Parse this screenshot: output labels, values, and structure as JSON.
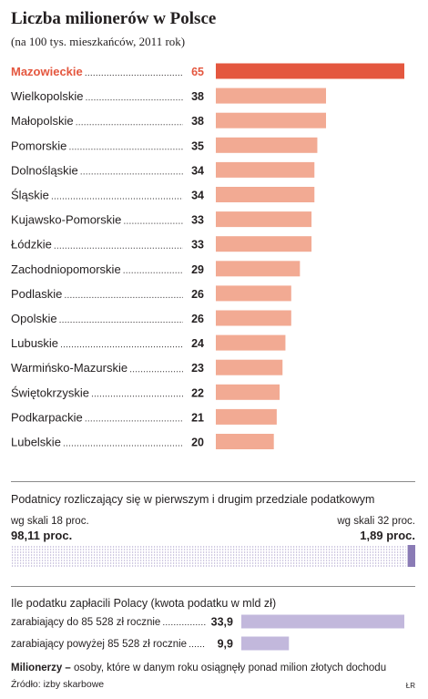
{
  "header": {
    "title": "Liczba milionerów w Polsce",
    "subtitle": "(na 100 tys. mieszkańców, 2011 rok)"
  },
  "colors": {
    "highlight": "#e4573f",
    "bar": "#f2aa93",
    "tax_bar": "#c2b8dc",
    "tax_bar_dark": "#8a7bb5",
    "dots": "#b3abd0"
  },
  "chart_data": [
    {
      "type": "bar",
      "orientation": "horizontal",
      "categories": [
        "Mazowieckie",
        "Wielkopolskie",
        "Małopolskie",
        "Pomorskie",
        "Dolnośląskie",
        "Śląskie",
        "Kujawsko-Pomorskie",
        "Łódzkie",
        "Zachodniopomorskie",
        "Podlaskie",
        "Opolskie",
        "Lubuskie",
        "Warmińsko-Mazurskie",
        "Świętokrzyskie",
        "Podkarpackie",
        "Lubelskie"
      ],
      "values": [
        65,
        38,
        38,
        35,
        34,
        34,
        33,
        33,
        29,
        26,
        26,
        24,
        23,
        22,
        21,
        20
      ],
      "value_labels": [
        "65",
        "38",
        "38",
        "35",
        "34",
        "34",
        "33",
        "33",
        "29",
        "26",
        "26",
        "24",
        "23",
        "22",
        "21",
        "20"
      ],
      "highlight_index": 0,
      "xlim": [
        0,
        65
      ]
    },
    {
      "type": "bar",
      "orientation": "horizontal",
      "stacked": true,
      "title": "Podatnicy rozliczający się w pierwszym i drugim przedziale podatkowym",
      "series": [
        {
          "name": "wg skali 18 proc.",
          "value": 98.11,
          "label": "98,11 proc."
        },
        {
          "name": "wg skali 32 proc.",
          "value": 1.89,
          "label": "1,89 proc."
        }
      ],
      "xlim": [
        0,
        100
      ]
    },
    {
      "type": "bar",
      "orientation": "horizontal",
      "title": "Ile podatku zapłacili Polacy (kwota podatku w mld zł)",
      "categories": [
        "zarabiający do 85 528 zł rocznie",
        "zarabiający powyżej 85 528 zł rocznie"
      ],
      "values": [
        33.9,
        9.9
      ],
      "value_labels": [
        "33,9",
        "9,9"
      ],
      "xlim": [
        0,
        33.9
      ]
    }
  ],
  "footer": {
    "definition_term": "Milionerzy –",
    "definition_text": " osoby, które w danym roku osiągnęły ponad milion złotych dochodu",
    "source": "Źródło: izby skarbowe",
    "author": "ŁR"
  }
}
